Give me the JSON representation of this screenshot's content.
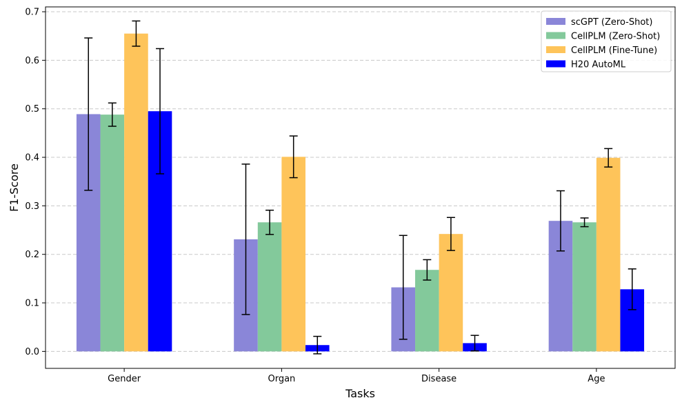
{
  "chart_data": {
    "type": "bar",
    "title": "",
    "xlabel": "Tasks",
    "ylabel": "F1-Score",
    "categories": [
      "Gender",
      "Organ",
      "Disease",
      "Age"
    ],
    "ylim": [
      -0.035,
      0.71
    ],
    "yticks": [
      "0.0",
      "0.1",
      "0.2",
      "0.3",
      "0.4",
      "0.5",
      "0.6",
      "0.7"
    ],
    "grid": "y-dashed",
    "legend_position": "top-right",
    "series": [
      {
        "name": "scGPT (Zero-Shot)",
        "color": "#8a86d8",
        "values": [
          0.489,
          0.231,
          0.132,
          0.269
        ],
        "errors": [
          0.157,
          0.155,
          0.107,
          0.062
        ]
      },
      {
        "name": "CellPLM (Zero-Shot)",
        "color": "#83c99b",
        "values": [
          0.488,
          0.266,
          0.168,
          0.266
        ],
        "errors": [
          0.024,
          0.025,
          0.021,
          0.009
        ]
      },
      {
        "name": "CellPLM (Fine-Tune)",
        "color": "#fec45a",
        "values": [
          0.655,
          0.401,
          0.242,
          0.399
        ],
        "errors": [
          0.026,
          0.043,
          0.034,
          0.019
        ]
      },
      {
        "name": "H20 AutoML",
        "color": "#0000ff",
        "values": [
          0.495,
          0.013,
          0.017,
          0.128
        ],
        "errors": [
          0.129,
          0.018,
          0.016,
          0.042
        ]
      }
    ]
  }
}
